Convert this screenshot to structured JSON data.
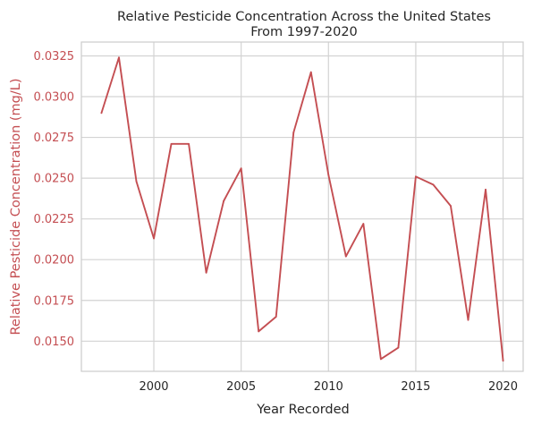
{
  "chart_data": {
    "type": "line",
    "title_lines": [
      "Relative Pesticide Concentration Across the United States",
      "From 1997-2020"
    ],
    "xlabel": "Year Recorded",
    "ylabel": "Relative Pesticide Concentration (mg/L)",
    "xlim": [
      1995.85,
      2021.15
    ],
    "ylim": [
      0.01315,
      0.03335
    ],
    "x_ticks": [
      2000,
      2005,
      2010,
      2015,
      2020
    ],
    "y_ticks": [
      0.015,
      0.0175,
      0.02,
      0.0225,
      0.025,
      0.0275,
      0.03,
      0.0325
    ],
    "grid": true,
    "series": [
      {
        "color": "#c44e52",
        "x": [
          1997,
          1998,
          1999,
          2000,
          2001,
          2002,
          2003,
          2004,
          2005,
          2006,
          2007,
          2008,
          2009,
          2010,
          2011,
          2012,
          2013,
          2014,
          2015,
          2016,
          2017,
          2018,
          2019,
          2020
        ],
        "values": [
          0.029,
          0.0324,
          0.0248,
          0.0213,
          0.0271,
          0.0271,
          0.0192,
          0.0236,
          0.0256,
          0.0156,
          0.0165,
          0.0278,
          0.0315,
          0.0252,
          0.0202,
          0.0222,
          0.0139,
          0.0146,
          0.0251,
          0.0246,
          0.0233,
          0.0163,
          0.0243,
          0.0138
        ]
      }
    ],
    "colors": {
      "ylabel": "#c44e52",
      "ytick": "#c44e52",
      "grid": "#d3d3d3",
      "spine": "#cccccc",
      "text": "#262626"
    }
  }
}
